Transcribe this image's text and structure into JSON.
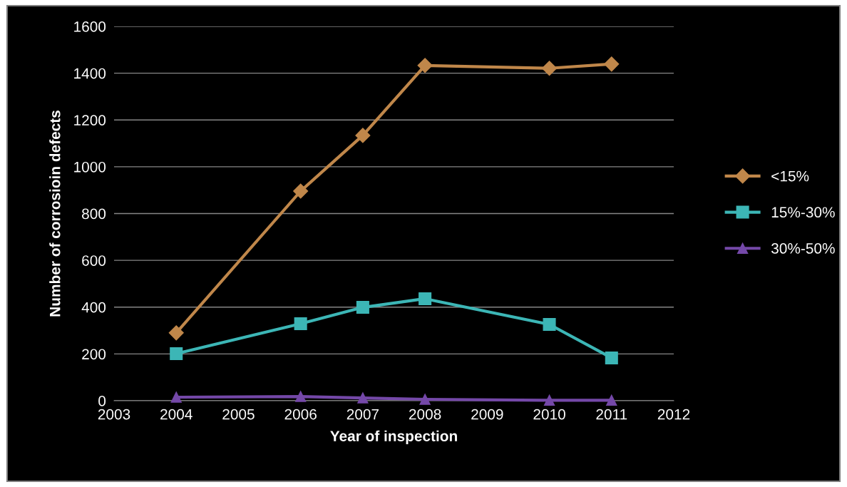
{
  "chart_data": {
    "type": "line",
    "xlabel": "Year of inspection",
    "ylabel": "Number of corrosioin defects",
    "xlim": [
      2003,
      2012
    ],
    "xticks": [
      2003,
      2004,
      2005,
      2006,
      2007,
      2008,
      2009,
      2010,
      2011,
      2012
    ],
    "ylim": [
      0,
      1600
    ],
    "yticks": [
      0,
      200,
      400,
      600,
      800,
      1000,
      1200,
      1400,
      1600
    ],
    "grid": "y",
    "legend": "right",
    "series": [
      {
        "name": "<15%",
        "color": "#c0874a",
        "marker": "diamond",
        "x": [
          2004,
          2006,
          2007,
          2008,
          2010,
          2011
        ],
        "values": [
          290,
          896,
          1134,
          1433,
          1421,
          1439
        ]
      },
      {
        "name": "15%-30%",
        "color": "#3cb6b6",
        "marker": "square",
        "x": [
          2004,
          2006,
          2007,
          2008,
          2010,
          2011
        ],
        "values": [
          201,
          329,
          399,
          436,
          326,
          183
        ]
      },
      {
        "name": "30%-50%",
        "color": "#7448a8",
        "marker": "triangle",
        "x": [
          2004,
          2006,
          2007,
          2008,
          2010,
          2011
        ],
        "values": [
          15,
          18,
          12,
          6,
          2,
          2
        ]
      }
    ]
  }
}
